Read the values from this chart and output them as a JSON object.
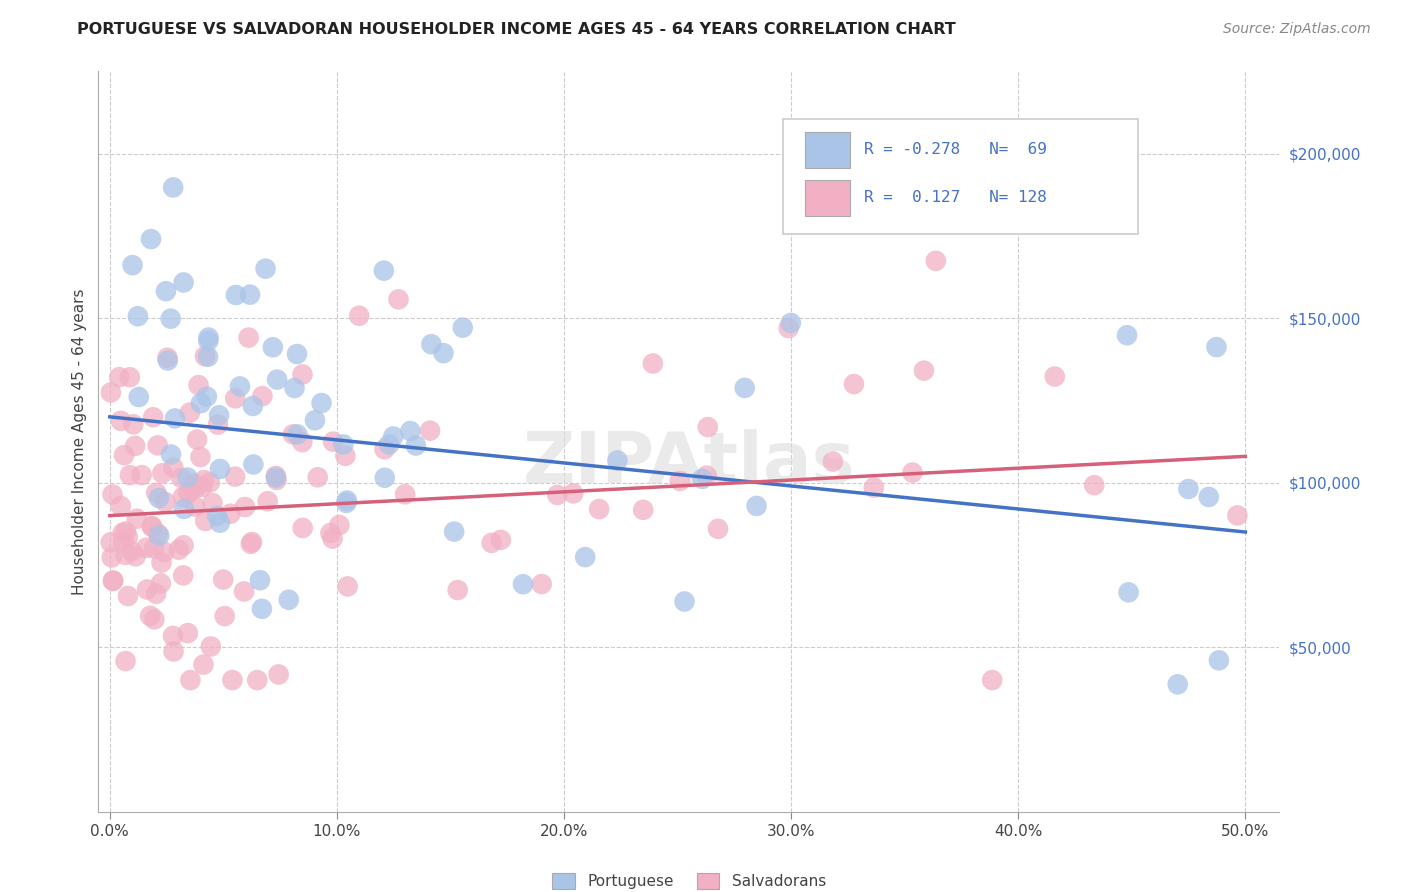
{
  "title": "PORTUGUESE VS SALVADORAN HOUSEHOLDER INCOME AGES 45 - 64 YEARS CORRELATION CHART",
  "source": "Source: ZipAtlas.com",
  "xlabel_ticks": [
    "0.0%",
    "10.0%",
    "20.0%",
    "30.0%",
    "40.0%",
    "50.0%"
  ],
  "xlabel_vals": [
    0.0,
    0.1,
    0.2,
    0.3,
    0.4,
    0.5
  ],
  "ylabel": "Householder Income Ages 45 - 64 years",
  "ylabel_ticks": [
    "$50,000",
    "$100,000",
    "$150,000",
    "$200,000"
  ],
  "ylabel_vals": [
    50000,
    100000,
    150000,
    200000
  ],
  "xlim": [
    -0.005,
    0.515
  ],
  "ylim": [
    0,
    225000
  ],
  "legend_r_portuguese": "-0.278",
  "legend_n_portuguese": "69",
  "legend_r_salvadoran": "0.127",
  "legend_n_salvadoran": "128",
  "portuguese_color": "#aac4e8",
  "salvadoran_color": "#f2b0c4",
  "portuguese_line_color": "#4472c4",
  "salvadoran_line_color": "#d4607a",
  "watermark": "ZIPAtlas",
  "port_line_x0": 0.0,
  "port_line_x1": 0.5,
  "port_line_y0": 120000,
  "port_line_y1": 85000,
  "salv_line_x0": 0.0,
  "salv_line_x1": 0.5,
  "salv_line_y0": 90000,
  "salv_line_y1": 108000
}
